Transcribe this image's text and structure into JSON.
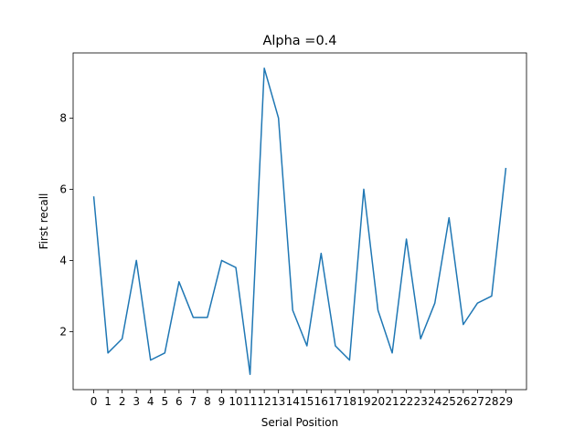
{
  "chart_data": {
    "type": "line",
    "title": "Alpha =0.4",
    "xlabel": "Serial Position",
    "ylabel": "First recall",
    "x": [
      0,
      1,
      2,
      3,
      4,
      5,
      6,
      7,
      8,
      9,
      10,
      11,
      12,
      13,
      14,
      15,
      16,
      17,
      18,
      19,
      20,
      21,
      22,
      23,
      24,
      25,
      26,
      27,
      28,
      29
    ],
    "x_tick_labels": [
      "0",
      "1",
      "2",
      "3",
      "4",
      "5",
      "6",
      "7",
      "8",
      "9",
      "10",
      "11",
      "12",
      "13",
      "14",
      "15",
      "16",
      "17",
      "18",
      "19",
      "20",
      "21",
      "22",
      "23",
      "24",
      "25",
      "26",
      "27",
      "28",
      "29"
    ],
    "y_ticks": [
      2,
      4,
      6,
      8
    ],
    "y_tick_labels": [
      "2",
      "4",
      "6",
      "8"
    ],
    "series": [
      {
        "values": [
          5.8,
          1.4,
          1.8,
          4.0,
          1.2,
          1.4,
          3.4,
          2.4,
          2.4,
          4.0,
          3.8,
          0.8,
          9.4,
          8.0,
          2.6,
          1.6,
          4.2,
          1.6,
          1.2,
          6.0,
          2.6,
          1.4,
          4.6,
          1.8,
          2.8,
          5.2,
          2.2,
          2.8,
          3.0,
          6.6
        ],
        "color": "#1f77b4"
      }
    ],
    "xlim": [
      -1.45,
      30.45
    ],
    "ylim": [
      0.37,
      9.83
    ],
    "grid": false,
    "legend": "none"
  }
}
